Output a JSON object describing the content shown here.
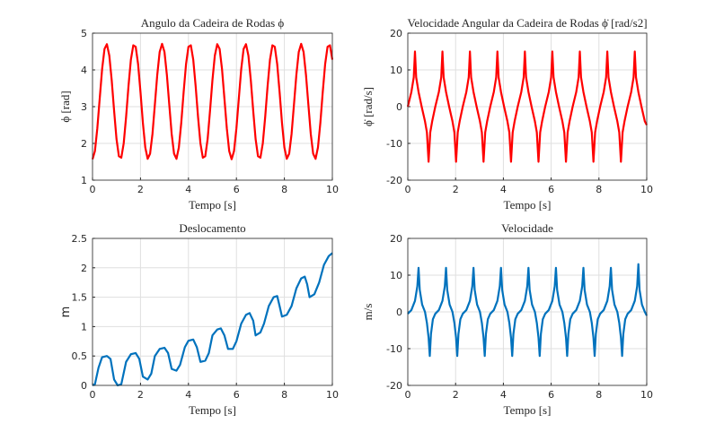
{
  "chart_data": [
    {
      "type": "line",
      "title": "Angulo da Cadeira de Rodas ϕ",
      "x_label": "Tempo [s]",
      "y_label": "ϕ [rad]",
      "xlim": [
        0,
        10
      ],
      "xticks": [
        0,
        2,
        4,
        6,
        8,
        10
      ],
      "ylim": [
        1,
        5
      ],
      "yticks": [
        1,
        2,
        3,
        4,
        5
      ],
      "grid": true,
      "x": [
        0,
        0.1,
        0.2,
        0.3,
        0.4,
        0.5,
        0.6,
        0.7,
        0.8,
        0.9,
        1,
        1.1,
        1.2,
        1.3,
        1.4,
        1.5,
        1.6,
        1.7,
        1.8,
        1.9,
        2,
        2.1,
        2.2,
        2.3,
        2.4,
        2.5,
        2.6,
        2.7,
        2.8,
        2.9,
        3,
        3.1,
        3.2,
        3.3,
        3.4,
        3.5,
        3.6,
        3.7,
        3.8,
        3.9,
        4,
        4.1,
        4.2,
        4.3,
        4.4,
        4.5,
        4.6,
        4.7,
        4.8,
        4.9,
        5,
        5.1,
        5.2,
        5.3,
        5.4,
        5.5,
        5.6,
        5.7,
        5.8,
        5.9,
        6,
        6.1,
        6.2,
        6.3,
        6.4,
        6.5,
        6.6,
        6.7,
        6.8,
        6.9,
        7,
        7.1,
        7.2,
        7.3,
        7.4,
        7.5,
        7.6,
        7.7,
        7.8,
        7.9,
        8,
        8.1,
        8.2,
        8.3,
        8.4,
        8.5,
        8.6,
        8.7,
        8.8,
        8.9,
        9,
        9.1,
        9.2,
        9.3,
        9.4,
        9.5,
        9.6,
        9.7,
        9.8,
        9.9,
        10
      ],
      "series": [
        {
          "color": "#ff0000",
          "values": [
            1.57,
            1.79,
            2.41,
            3.22,
            4.02,
            4.57,
            4.7,
            4.39,
            3.72,
            2.89,
            2.12,
            1.65,
            1.61,
            2.0,
            2.72,
            3.56,
            4.28,
            4.67,
            4.63,
            4.16,
            3.4,
            2.56,
            1.89,
            1.58,
            1.72,
            2.26,
            3.06,
            3.87,
            4.49,
            4.71,
            4.49,
            3.87,
            3.06,
            2.26,
            1.72,
            1.58,
            1.89,
            2.56,
            3.4,
            4.16,
            4.63,
            4.67,
            4.28,
            3.56,
            2.72,
            2.0,
            1.61,
            1.65,
            2.12,
            2.89,
            3.72,
            4.39,
            4.7,
            4.57,
            4.02,
            3.22,
            2.41,
            1.79,
            1.57,
            1.79,
            2.41,
            3.22,
            4.02,
            4.57,
            4.7,
            4.39,
            3.72,
            2.89,
            2.12,
            1.65,
            1.61,
            2.0,
            2.72,
            3.56,
            4.28,
            4.67,
            4.63,
            4.16,
            3.4,
            2.56,
            1.89,
            1.58,
            1.72,
            2.26,
            3.06,
            3.87,
            4.49,
            4.71,
            4.49,
            3.87,
            3.06,
            2.26,
            1.72,
            1.58,
            1.89,
            2.56,
            3.4,
            4.16,
            4.63,
            4.67,
            4.28
          ]
        }
      ]
    },
    {
      "type": "line",
      "title": "Velocidade Angular da Cadeira de Rodas ϕ̇ [rad/s2]",
      "x_label": "Tempo [s]",
      "y_label": "ϕ̇ [rad/s]",
      "xlim": [
        0,
        10
      ],
      "xticks": [
        0,
        2,
        4,
        6,
        8,
        10
      ],
      "ylim": [
        -20,
        20
      ],
      "yticks": [
        -20,
        -10,
        0,
        10,
        20
      ],
      "grid": true,
      "x": [
        0,
        0.15,
        0.25,
        0.3,
        0.35,
        0.45,
        0.58,
        0.72,
        0.8,
        0.87,
        0.94,
        1.02,
        1.15,
        1.3,
        1.4,
        1.45,
        1.5,
        1.6,
        1.73,
        1.87,
        1.95,
        2.02,
        2.09,
        2.17,
        2.3,
        2.45,
        2.55,
        2.6,
        2.65,
        2.75,
        2.88,
        3.02,
        3.1,
        3.17,
        3.24,
        3.32,
        3.45,
        3.6,
        3.7,
        3.75,
        3.8,
        3.9,
        4.03,
        4.17,
        4.25,
        4.32,
        4.39,
        4.47,
        4.6,
        4.75,
        4.85,
        4.9,
        4.95,
        5.05,
        5.18,
        5.32,
        5.4,
        5.47,
        5.54,
        5.62,
        5.75,
        5.9,
        6.0,
        6.05,
        6.1,
        6.2,
        6.33,
        6.47,
        6.55,
        6.62,
        6.69,
        6.77,
        6.9,
        7.05,
        7.15,
        7.2,
        7.25,
        7.35,
        7.48,
        7.62,
        7.7,
        7.77,
        7.84,
        7.92,
        8.05,
        8.2,
        8.3,
        8.35,
        8.4,
        8.5,
        8.63,
        8.77,
        8.85,
        8.92,
        8.99,
        9.07,
        9.2,
        9.35,
        9.45,
        9.5,
        9.55,
        9.65,
        9.78,
        9.92,
        10
      ],
      "series": [
        {
          "color": "#ff0000",
          "values": [
            0,
            4,
            8,
            15,
            8,
            4,
            0,
            -4,
            -7,
            -15,
            -7,
            -4,
            0,
            4,
            8,
            15,
            8,
            4,
            0,
            -4,
            -7,
            -15,
            -7,
            -4,
            0,
            4,
            8,
            15,
            8,
            4,
            0,
            -4,
            -7,
            -15,
            -7,
            -4,
            0,
            4,
            8,
            15,
            8,
            4,
            0,
            -4,
            -7,
            -15,
            -7,
            -4,
            0,
            4,
            8,
            15,
            8,
            4,
            0,
            -4,
            -7,
            -15,
            -7,
            -4,
            0,
            4,
            8,
            15,
            8,
            4,
            0,
            -4,
            -7,
            -15,
            -7,
            -4,
            0,
            4,
            8,
            15,
            8,
            4,
            0,
            -4,
            -7,
            -15,
            -7,
            -4,
            0,
            4,
            8,
            15,
            8,
            4,
            0,
            -4,
            -7,
            -15,
            -7,
            -4,
            0,
            4,
            8,
            15,
            8,
            4,
            0,
            -4,
            -5
          ]
        }
      ]
    },
    {
      "type": "line",
      "title": "Deslocamento",
      "x_label": "Tempo [s]",
      "y_label": "m",
      "xlim": [
        0,
        10
      ],
      "xticks": [
        0,
        2,
        4,
        6,
        8,
        10
      ],
      "ylim": [
        0,
        2.5
      ],
      "yticks": [
        0,
        0.5,
        1,
        1.5,
        2,
        2.5
      ],
      "grid": true,
      "x": [
        0,
        0.1,
        0.25,
        0.4,
        0.6,
        0.75,
        0.9,
        1.05,
        1.2,
        1.4,
        1.6,
        1.8,
        1.95,
        2.1,
        2.3,
        2.45,
        2.6,
        2.8,
        3.0,
        3.15,
        3.3,
        3.5,
        3.65,
        3.85,
        4.0,
        4.2,
        4.35,
        4.5,
        4.7,
        4.85,
        5.0,
        5.2,
        5.35,
        5.5,
        5.65,
        5.85,
        6.0,
        6.2,
        6.4,
        6.55,
        6.7,
        6.8,
        7.0,
        7.15,
        7.35,
        7.55,
        7.7,
        7.8,
        7.9,
        8.1,
        8.3,
        8.5,
        8.7,
        8.85,
        8.95,
        9.05,
        9.25,
        9.45,
        9.65,
        9.85,
        10
      ],
      "series": [
        {
          "color": "#0072bd",
          "values": [
            0,
            0.02,
            0.3,
            0.48,
            0.5,
            0.45,
            0.1,
            0.0,
            0.02,
            0.4,
            0.53,
            0.55,
            0.45,
            0.15,
            0.1,
            0.2,
            0.5,
            0.62,
            0.64,
            0.55,
            0.28,
            0.25,
            0.35,
            0.65,
            0.76,
            0.78,
            0.65,
            0.4,
            0.42,
            0.55,
            0.85,
            0.95,
            0.97,
            0.85,
            0.62,
            0.62,
            0.75,
            1.05,
            1.2,
            1.23,
            1.1,
            0.85,
            0.9,
            1.05,
            1.35,
            1.5,
            1.52,
            1.35,
            1.17,
            1.2,
            1.35,
            1.65,
            1.82,
            1.85,
            1.72,
            1.5,
            1.55,
            1.75,
            2.05,
            2.2,
            2.25
          ]
        }
      ]
    },
    {
      "type": "line",
      "title": "Velocidade",
      "x_label": "Tempo [s]",
      "y_label": "m/s",
      "xlim": [
        0,
        10
      ],
      "xticks": [
        0,
        2,
        4,
        6,
        8,
        10
      ],
      "ylim": [
        -20,
        20
      ],
      "yticks": [
        -20,
        -10,
        0,
        10,
        20
      ],
      "grid": true,
      "x": [
        0,
        0.15,
        0.3,
        0.4,
        0.45,
        0.5,
        0.6,
        0.72,
        0.8,
        0.87,
        0.92,
        0.97,
        1.05,
        1.15,
        1.3,
        1.45,
        1.55,
        1.6,
        1.65,
        1.75,
        1.87,
        1.95,
        2.02,
        2.07,
        2.12,
        2.2,
        2.3,
        2.45,
        2.6,
        2.7,
        2.75,
        2.8,
        2.9,
        3.02,
        3.1,
        3.17,
        3.22,
        3.27,
        3.35,
        3.45,
        3.6,
        3.75,
        3.85,
        3.9,
        3.95,
        4.05,
        4.17,
        4.25,
        4.32,
        4.37,
        4.42,
        4.5,
        4.6,
        4.75,
        4.9,
        5.0,
        5.05,
        5.1,
        5.2,
        5.32,
        5.4,
        5.47,
        5.52,
        5.57,
        5.65,
        5.75,
        5.9,
        6.05,
        6.15,
        6.2,
        6.25,
        6.35,
        6.47,
        6.55,
        6.62,
        6.67,
        6.72,
        6.8,
        6.9,
        7.05,
        7.2,
        7.3,
        7.35,
        7.4,
        7.5,
        7.62,
        7.7,
        7.77,
        7.82,
        7.87,
        7.95,
        8.05,
        8.2,
        8.35,
        8.45,
        8.5,
        8.55,
        8.65,
        8.77,
        8.85,
        8.92,
        8.97,
        9.02,
        9.1,
        9.2,
        9.35,
        9.5,
        9.6,
        9.65,
        9.7,
        9.8,
        9.92,
        10
      ],
      "series": [
        {
          "color": "#0072bd",
          "values": [
            -0.5,
            0.5,
            3,
            7,
            12,
            6,
            2,
            0,
            -3,
            -7,
            -12,
            -6,
            -2,
            -0.5,
            0.5,
            3,
            7,
            12,
            6,
            2,
            0,
            -3,
            -7,
            -12,
            -6,
            -2,
            -0.5,
            0.5,
            3,
            7,
            12,
            6,
            2,
            0,
            -3,
            -7,
            -12,
            -6,
            -2,
            -0.5,
            0.5,
            3,
            7,
            12,
            6,
            2,
            0,
            -3,
            -7,
            -12,
            -6,
            -2,
            -0.5,
            0.5,
            3,
            7,
            12,
            6,
            2,
            0,
            -3,
            -7,
            -12,
            -6,
            -2,
            -0.5,
            0.5,
            3,
            7,
            12,
            6,
            2,
            0,
            -3,
            -7,
            -12,
            -6,
            -2,
            -0.5,
            0.5,
            3,
            7,
            12,
            6,
            2,
            0,
            -3,
            -7,
            -12,
            -6,
            -2,
            -0.5,
            0.5,
            3,
            7,
            12,
            6,
            2,
            0,
            -3,
            -7,
            -12,
            -6,
            -2,
            -0.5,
            0.5,
            3,
            7,
            13,
            6,
            2,
            0,
            -1
          ]
        }
      ]
    }
  ]
}
